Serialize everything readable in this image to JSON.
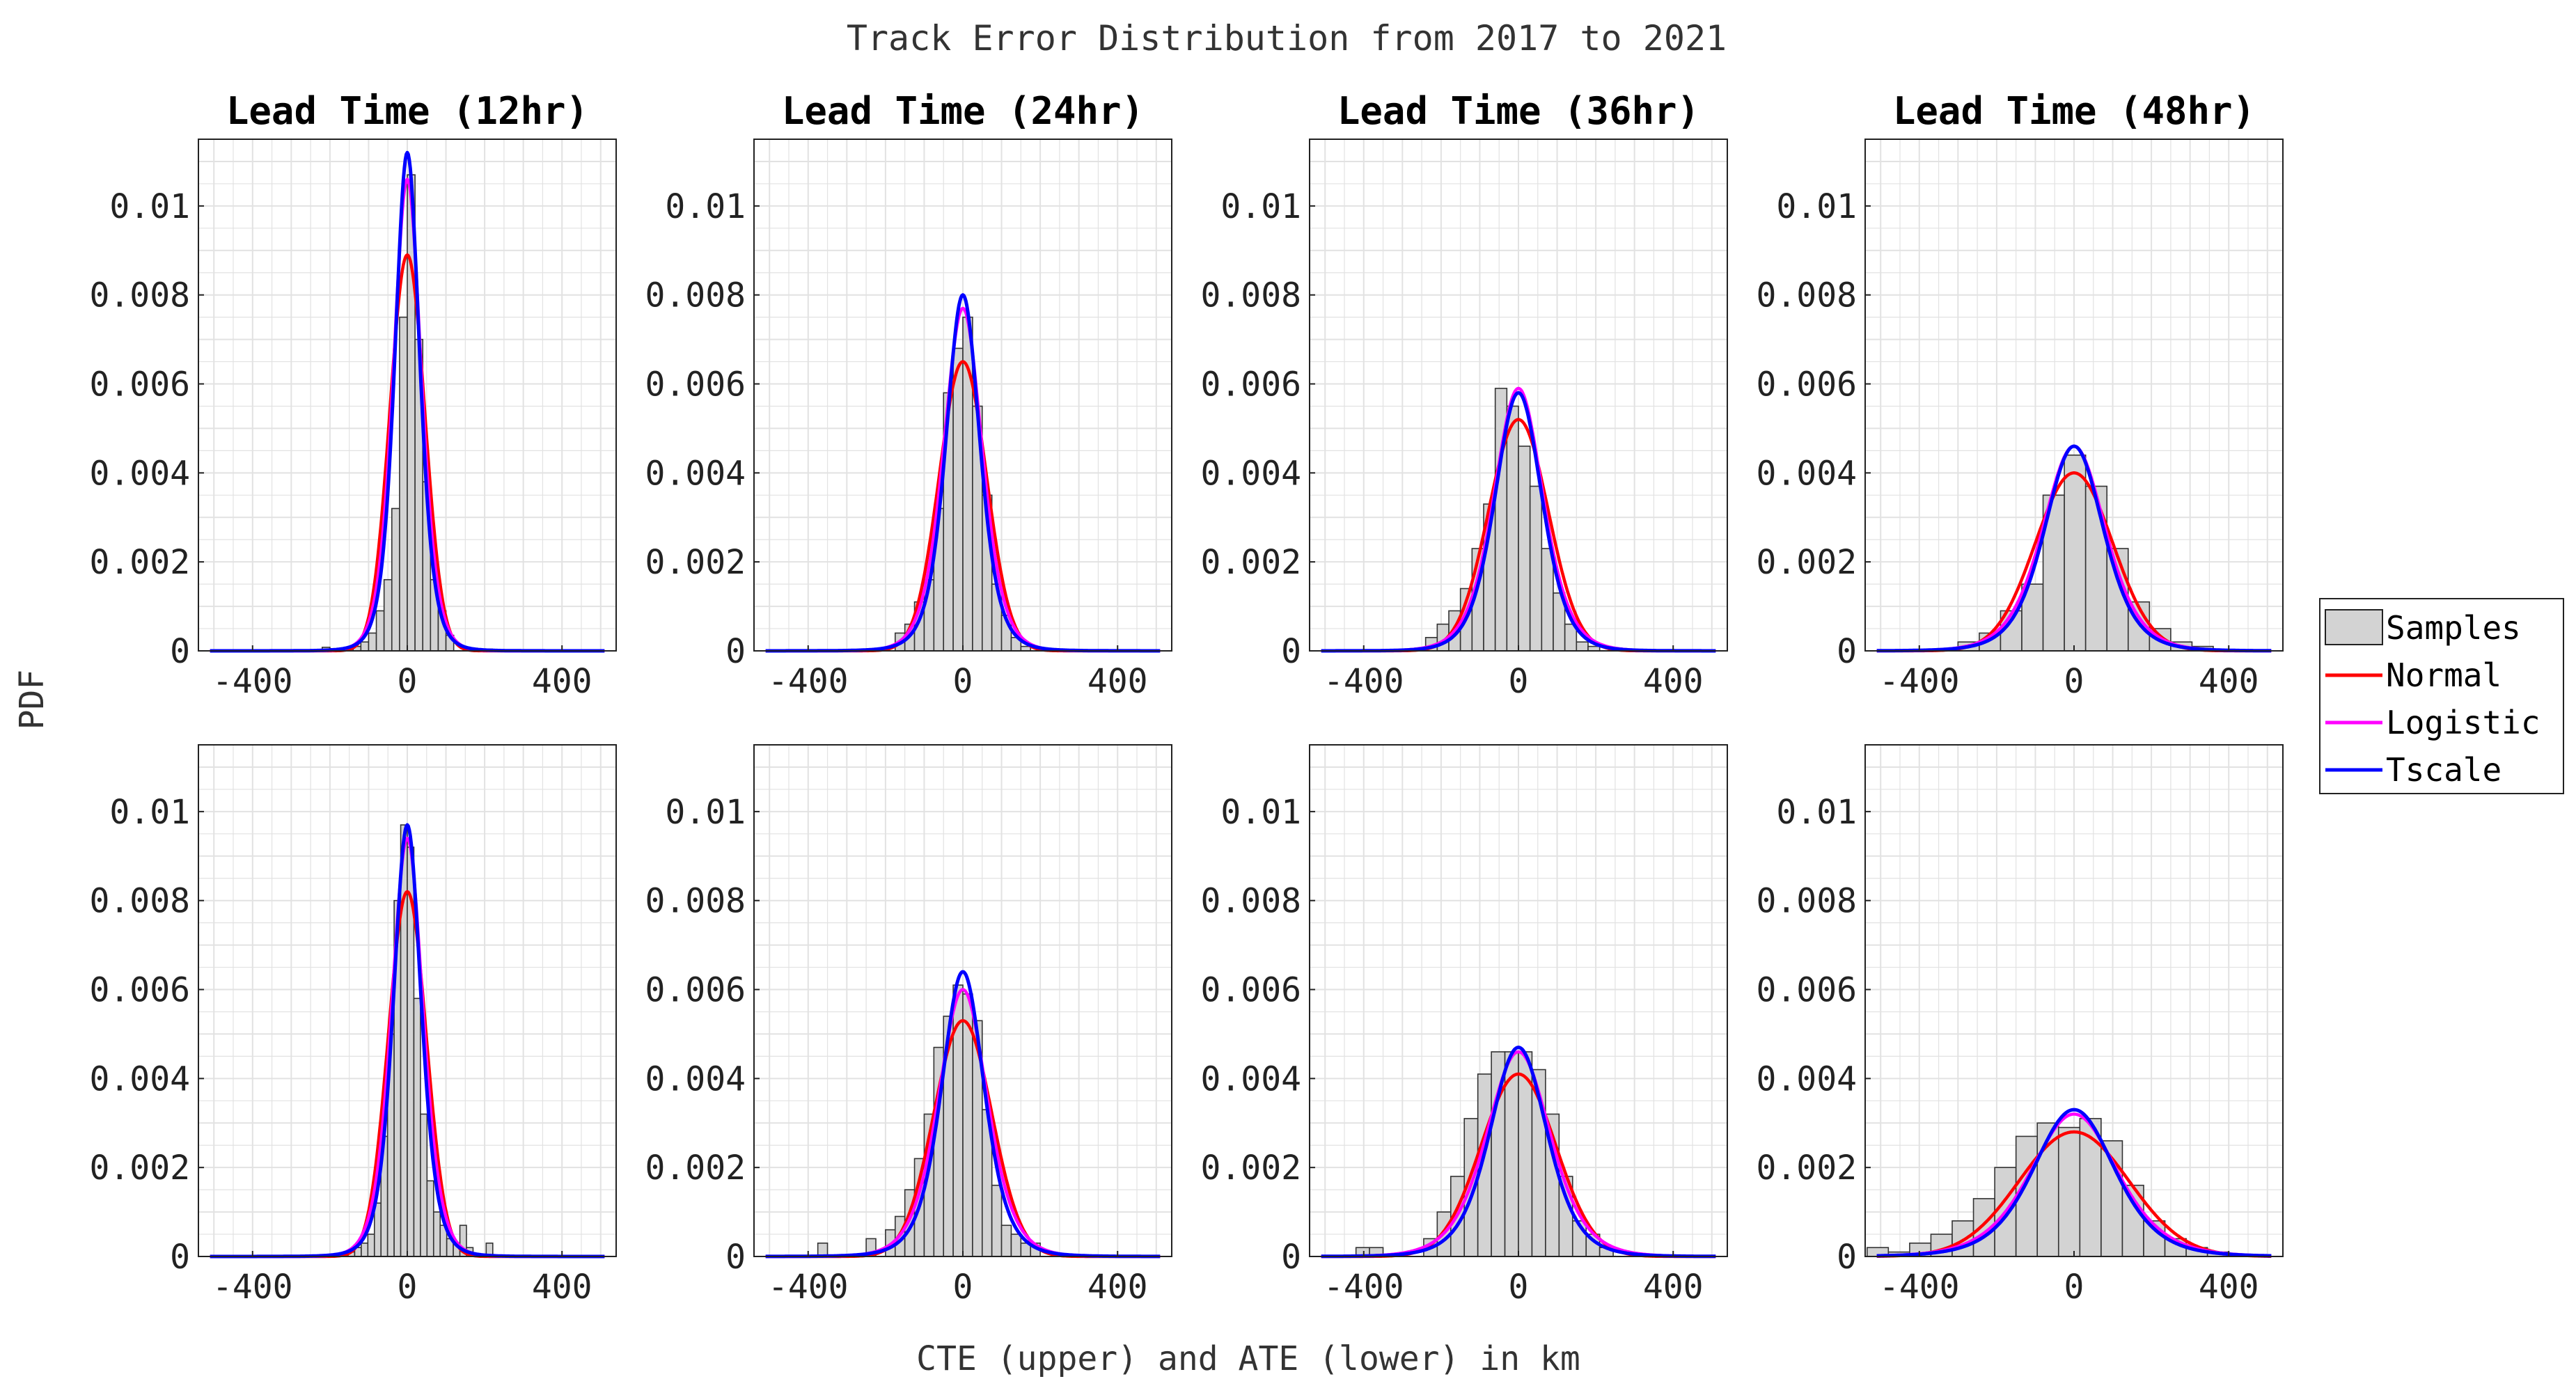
{
  "title": "Track Error Distribution from 2017 to 2021",
  "xlabel": "CTE (upper) and ATE (lower) in km",
  "ylabel": "PDF",
  "legend": {
    "placement": "right",
    "entries": [
      "Samples",
      "Normal",
      "Logistic",
      "Tscale"
    ]
  },
  "colors": {
    "samples_fill": "#d3d3d3",
    "samples_edge": "#333333",
    "Normal": "#ff0000",
    "Logistic": "#ff00ff",
    "Tscale": "#0000ff",
    "grid": "#e2e2e2"
  },
  "chart_data": [
    {
      "type": "bar",
      "row": "upper",
      "title": "Lead Time (12hr)",
      "xlim": [
        -540,
        540
      ],
      "ylim": [
        0,
        0.0115
      ],
      "xticks": [
        -400,
        0,
        400
      ],
      "xtick_labels": [
        "-400",
        "0",
        "400"
      ],
      "yticks": [
        0,
        0.002,
        0.004,
        0.006,
        0.008,
        0.01
      ],
      "ytick_labels": [
        "0",
        "0.002",
        "0.004",
        "0.006",
        "0.008",
        "0.01"
      ],
      "bin_width": 20,
      "bins": [
        [
          -220,
          8e-05
        ],
        [
          -200,
          5e-05
        ],
        [
          -160,
          4e-05
        ],
        [
          -140,
          0.0001
        ],
        [
          -120,
          0.0002
        ],
        [
          -100,
          0.0004
        ],
        [
          -80,
          0.0009
        ],
        [
          -60,
          0.0016
        ],
        [
          -40,
          0.0032
        ],
        [
          -20,
          0.0075
        ],
        [
          0,
          0.0107
        ],
        [
          20,
          0.007
        ],
        [
          40,
          0.0038
        ],
        [
          60,
          0.0016
        ],
        [
          80,
          0.0009
        ],
        [
          100,
          0.00035
        ],
        [
          160,
          3e-05
        ],
        [
          200,
          4e-05
        ]
      ],
      "series": [
        {
          "name": "Normal",
          "mu": 0,
          "sigma": 45,
          "peak": 0.0089
        },
        {
          "name": "Logistic",
          "mu": 0,
          "s": 24,
          "peak": 0.0106
        },
        {
          "name": "Tscale",
          "mu": 0,
          "sigma": 33,
          "nu": 5,
          "peak": 0.0112
        }
      ]
    },
    {
      "type": "bar",
      "row": "upper",
      "title": "Lead Time (24hr)",
      "xlim": [
        -540,
        540
      ],
      "ylim": [
        0,
        0.0115
      ],
      "xticks": [
        -400,
        0,
        400
      ],
      "xtick_labels": [
        "-400",
        "0",
        "400"
      ],
      "yticks": [
        0,
        0.002,
        0.004,
        0.006,
        0.008,
        0.01
      ],
      "ytick_labels": [
        "0",
        "0.002",
        "0.004",
        "0.006",
        "0.008",
        "0.01"
      ],
      "bin_width": 25,
      "bins": [
        [
          -175,
          0.0004
        ],
        [
          -150,
          0.0006
        ],
        [
          -125,
          0.0011
        ],
        [
          -100,
          0.0016
        ],
        [
          -75,
          0.0032
        ],
        [
          -50,
          0.0058
        ],
        [
          -25,
          0.0068
        ],
        [
          0,
          0.0075
        ],
        [
          25,
          0.0055
        ],
        [
          50,
          0.0035
        ],
        [
          75,
          0.0015
        ],
        [
          100,
          0.0008
        ],
        [
          125,
          0.0003
        ],
        [
          150,
          0.0001
        ]
      ],
      "series": [
        {
          "name": "Normal",
          "mu": 0,
          "sigma": 61,
          "peak": 0.0065
        },
        {
          "name": "Logistic",
          "mu": 0,
          "s": 33,
          "peak": 0.0077
        },
        {
          "name": "Tscale",
          "mu": 0,
          "sigma": 45,
          "nu": 5,
          "peak": 0.008
        }
      ]
    },
    {
      "type": "bar",
      "row": "upper",
      "title": "Lead Time (36hr)",
      "xlim": [
        -540,
        540
      ],
      "ylim": [
        0,
        0.0115
      ],
      "xticks": [
        -400,
        0,
        400
      ],
      "xtick_labels": [
        "-400",
        "0",
        "400"
      ],
      "yticks": [
        0,
        0.002,
        0.004,
        0.006,
        0.008,
        0.01
      ],
      "ytick_labels": [
        "0",
        "0.002",
        "0.004",
        "0.006",
        "0.008",
        "0.01"
      ],
      "bin_width": 30,
      "bins": [
        [
          -240,
          0.0003
        ],
        [
          -210,
          0.0006
        ],
        [
          -180,
          0.0009
        ],
        [
          -150,
          0.0014
        ],
        [
          -120,
          0.0023
        ],
        [
          -90,
          0.0033
        ],
        [
          -60,
          0.0059
        ],
        [
          -30,
          0.0055
        ],
        [
          0,
          0.0046
        ],
        [
          30,
          0.0037
        ],
        [
          60,
          0.0023
        ],
        [
          90,
          0.0013
        ],
        [
          120,
          0.0006
        ],
        [
          150,
          0.0002
        ],
        [
          180,
          0.0001
        ]
      ],
      "series": [
        {
          "name": "Normal",
          "mu": 0,
          "sigma": 77,
          "peak": 0.0052
        },
        {
          "name": "Logistic",
          "mu": 0,
          "s": 42,
          "peak": 0.0059
        },
        {
          "name": "Tscale",
          "mu": 0,
          "sigma": 62,
          "nu": 7,
          "peak": 0.0058
        }
      ]
    },
    {
      "type": "bar",
      "row": "upper",
      "title": "Lead Time (48hr)",
      "xlim": [
        -540,
        540
      ],
      "ylim": [
        0,
        0.0115
      ],
      "xticks": [
        -400,
        0,
        400
      ],
      "xtick_labels": [
        "-400",
        "0",
        "400"
      ],
      "yticks": [
        0,
        0.002,
        0.004,
        0.006,
        0.008,
        0.01
      ],
      "ytick_labels": [
        "0",
        "0.002",
        "0.004",
        "0.006",
        "0.008",
        "0.01"
      ],
      "bin_width": 55,
      "bins": [
        [
          -300,
          0.0002
        ],
        [
          -245,
          0.0004
        ],
        [
          -190,
          0.0009
        ],
        [
          -135,
          0.0015
        ],
        [
          -80,
          0.0035
        ],
        [
          -25,
          0.0044
        ],
        [
          30,
          0.0037
        ],
        [
          85,
          0.0023
        ],
        [
          140,
          0.0011
        ],
        [
          195,
          0.0005
        ],
        [
          250,
          0.0002
        ],
        [
          305,
          0.0001
        ]
      ],
      "series": [
        {
          "name": "Normal",
          "mu": 0,
          "sigma": 100,
          "peak": 0.004
        },
        {
          "name": "Logistic",
          "mu": 0,
          "s": 54,
          "peak": 0.0046
        },
        {
          "name": "Tscale",
          "mu": 0,
          "sigma": 78,
          "nu": 6,
          "peak": 0.0046
        }
      ]
    },
    {
      "type": "bar",
      "row": "lower",
      "title": "",
      "xlim": [
        -540,
        540
      ],
      "ylim": [
        0,
        0.0115
      ],
      "xticks": [
        -400,
        0,
        400
      ],
      "xtick_labels": [
        "-400",
        "0",
        "400"
      ],
      "yticks": [
        0,
        0.002,
        0.004,
        0.006,
        0.008,
        0.01
      ],
      "ytick_labels": [
        "0",
        "0.002",
        "0.004",
        "0.006",
        "0.008",
        "0.01"
      ],
      "bin_width": 17,
      "bins": [
        [
          -153,
          0.0001
        ],
        [
          -136,
          0.0002
        ],
        [
          -119,
          0.0003
        ],
        [
          -102,
          0.0005
        ],
        [
          -85,
          0.0012
        ],
        [
          -68,
          0.0027
        ],
        [
          -51,
          0.005
        ],
        [
          -34,
          0.008
        ],
        [
          -17,
          0.0097
        ],
        [
          0,
          0.0092
        ],
        [
          17,
          0.0058
        ],
        [
          34,
          0.0032
        ],
        [
          51,
          0.0017
        ],
        [
          68,
          0.001
        ],
        [
          85,
          0.0007
        ],
        [
          102,
          0.0004
        ],
        [
          119,
          0.0003
        ],
        [
          136,
          0.0007
        ],
        [
          153,
          0.0002
        ],
        [
          204,
          0.0003
        ]
      ],
      "series": [
        {
          "name": "Normal",
          "mu": 0,
          "sigma": 49,
          "peak": 0.0082
        },
        {
          "name": "Logistic",
          "mu": 0,
          "s": 27,
          "peak": 0.0094
        },
        {
          "name": "Tscale",
          "mu": 0,
          "sigma": 37,
          "nu": 5,
          "peak": 0.0097
        }
      ]
    },
    {
      "type": "bar",
      "row": "lower",
      "title": "",
      "xlim": [
        -540,
        540
      ],
      "ylim": [
        0,
        0.0115
      ],
      "xticks": [
        -400,
        0,
        400
      ],
      "xtick_labels": [
        "-400",
        "0",
        "400"
      ],
      "yticks": [
        0,
        0.002,
        0.004,
        0.006,
        0.008,
        0.01
      ],
      "ytick_labels": [
        "0",
        "0.002",
        "0.004",
        "0.006",
        "0.008",
        "0.01"
      ],
      "bin_width": 25,
      "bins": [
        [
          -375,
          0.0003
        ],
        [
          -250,
          0.0004
        ],
        [
          -200,
          0.0006
        ],
        [
          -175,
          0.0009
        ],
        [
          -150,
          0.0015
        ],
        [
          -125,
          0.0022
        ],
        [
          -100,
          0.0032
        ],
        [
          -75,
          0.0047
        ],
        [
          -50,
          0.0054
        ],
        [
          -25,
          0.0061
        ],
        [
          0,
          0.0059
        ],
        [
          25,
          0.0053
        ],
        [
          50,
          0.0033
        ],
        [
          75,
          0.0016
        ],
        [
          100,
          0.0007
        ],
        [
          125,
          0.0005
        ],
        [
          150,
          0.0003
        ],
        [
          175,
          0.0003
        ]
      ],
      "series": [
        {
          "name": "Normal",
          "mu": 0,
          "sigma": 75,
          "peak": 0.0053
        },
        {
          "name": "Logistic",
          "mu": 0,
          "s": 42,
          "peak": 0.006
        },
        {
          "name": "Tscale",
          "mu": 0,
          "sigma": 57,
          "nu": 5,
          "peak": 0.0064
        }
      ]
    },
    {
      "type": "bar",
      "row": "lower",
      "title": "",
      "xlim": [
        -540,
        540
      ],
      "ylim": [
        0,
        0.0115
      ],
      "xticks": [
        -400,
        0,
        400
      ],
      "xtick_labels": [
        "-400",
        "0",
        "400"
      ],
      "yticks": [
        0,
        0.002,
        0.004,
        0.006,
        0.008,
        0.01
      ],
      "ytick_labels": [
        "0",
        "0.002",
        "0.004",
        "0.006",
        "0.008",
        "0.01"
      ],
      "bin_width": 35,
      "bins": [
        [
          -420,
          0.0002
        ],
        [
          -385,
          0.0002
        ],
        [
          -245,
          0.0004
        ],
        [
          -210,
          0.001
        ],
        [
          -175,
          0.0018
        ],
        [
          -140,
          0.0031
        ],
        [
          -105,
          0.0041
        ],
        [
          -70,
          0.0046
        ],
        [
          -35,
          0.0046
        ],
        [
          0,
          0.0046
        ],
        [
          35,
          0.0042
        ],
        [
          70,
          0.0032
        ],
        [
          105,
          0.0018
        ],
        [
          140,
          0.0008
        ],
        [
          175,
          0.0005
        ],
        [
          210,
          0.0002
        ]
      ],
      "series": [
        {
          "name": "Normal",
          "mu": 0,
          "sigma": 97,
          "peak": 0.0041
        },
        {
          "name": "Logistic",
          "mu": 0,
          "s": 55,
          "peak": 0.0046
        },
        {
          "name": "Tscale",
          "mu": 0,
          "sigma": 76,
          "nu": 6,
          "peak": 0.0047
        }
      ]
    },
    {
      "type": "bar",
      "row": "lower",
      "title": "",
      "xlim": [
        -540,
        540
      ],
      "ylim": [
        0,
        0.0115
      ],
      "xticks": [
        -400,
        0,
        400
      ],
      "xtick_labels": [
        "-400",
        "0",
        "400"
      ],
      "yticks": [
        0,
        0.002,
        0.004,
        0.006,
        0.008,
        0.01
      ],
      "ytick_labels": [
        "0",
        "0.002",
        "0.004",
        "0.006",
        "0.008",
        "0.01"
      ],
      "bin_width": 55,
      "bins": [
        [
          -535,
          0.0002
        ],
        [
          -480,
          0.0001
        ],
        [
          -425,
          0.0003
        ],
        [
          -370,
          0.0005
        ],
        [
          -315,
          0.0008
        ],
        [
          -260,
          0.0013
        ],
        [
          -205,
          0.002
        ],
        [
          -150,
          0.0027
        ],
        [
          -95,
          0.003
        ],
        [
          -40,
          0.0029
        ],
        [
          15,
          0.0031
        ],
        [
          70,
          0.0026
        ],
        [
          125,
          0.0016
        ],
        [
          180,
          0.0008
        ],
        [
          235,
          0.0004
        ],
        [
          290,
          0.0002
        ],
        [
          345,
          0.0001
        ]
      ],
      "series": [
        {
          "name": "Normal",
          "mu": 0,
          "sigma": 142,
          "peak": 0.0028
        },
        {
          "name": "Logistic",
          "mu": 0,
          "s": 75,
          "peak": 0.0032
        },
        {
          "name": "Tscale",
          "mu": 0,
          "sigma": 108,
          "nu": 6,
          "peak": 0.0033
        }
      ]
    }
  ]
}
